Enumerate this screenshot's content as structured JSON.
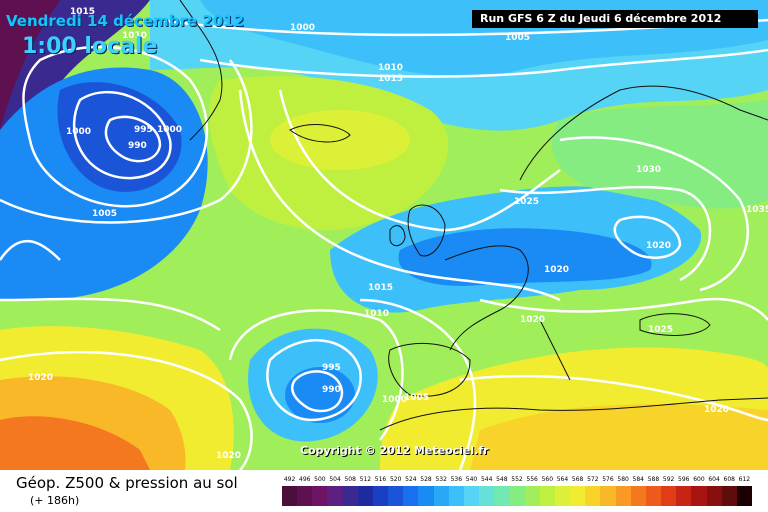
{
  "header": {
    "date": "Vendredi 14 décembre 2012",
    "time": "1:00 locale",
    "run": "Run GFS 6 Z du Jeudi 6 décembre 2012"
  },
  "copyright": "Copyright © 2012 Meteociel.fr",
  "footer": {
    "title": "Géop. Z500 & pression au sol",
    "subtitle": "(+ 186h)"
  },
  "isobar_labels": [
    "1015",
    "1010",
    "1000",
    "1005",
    "1010",
    "1015",
    "1000",
    "995",
    "1000",
    "990",
    "1005",
    "1030",
    "1025",
    "1020",
    "1020",
    "1015",
    "1010",
    "1020",
    "995",
    "990",
    "1000",
    "1005",
    "1025",
    "1020",
    "1020",
    "1020",
    "1035"
  ],
  "legend": {
    "values": [
      "492",
      "496",
      "500",
      "504",
      "508",
      "512",
      "516",
      "520",
      "524",
      "528",
      "532",
      "536",
      "540",
      "544",
      "548",
      "552",
      "556",
      "560",
      "564",
      "568",
      "572",
      "576",
      "580",
      "584",
      "588",
      "592",
      "596",
      "600",
      "604",
      "608",
      "612"
    ],
    "colors": [
      "#4b0f3d",
      "#5e1050",
      "#6e1464",
      "#5e2080",
      "#3a2a90",
      "#202aa0",
      "#1a3fc0",
      "#1a55d8",
      "#1a6ef0",
      "#1a8af5",
      "#2aa8f8",
      "#3dc0fa",
      "#55d4f5",
      "#66e0d8",
      "#70e8b0",
      "#84ec80",
      "#a0ee5a",
      "#bff040",
      "#ddf038",
      "#f2ec30",
      "#f8d42a",
      "#f8b828",
      "#f89a24",
      "#f47820",
      "#ee5a1c",
      "#e03c18",
      "#c82416",
      "#a81412",
      "#86100e",
      "#600c0c",
      "#1a0000"
    ]
  },
  "colors": {
    "background_top": "#5a1a6e",
    "trough_blue": "#1e64e0",
    "ridge_yellow": "#f0ec3a",
    "high_orange": "#f47820",
    "isobar_white": "#ffffff"
  }
}
